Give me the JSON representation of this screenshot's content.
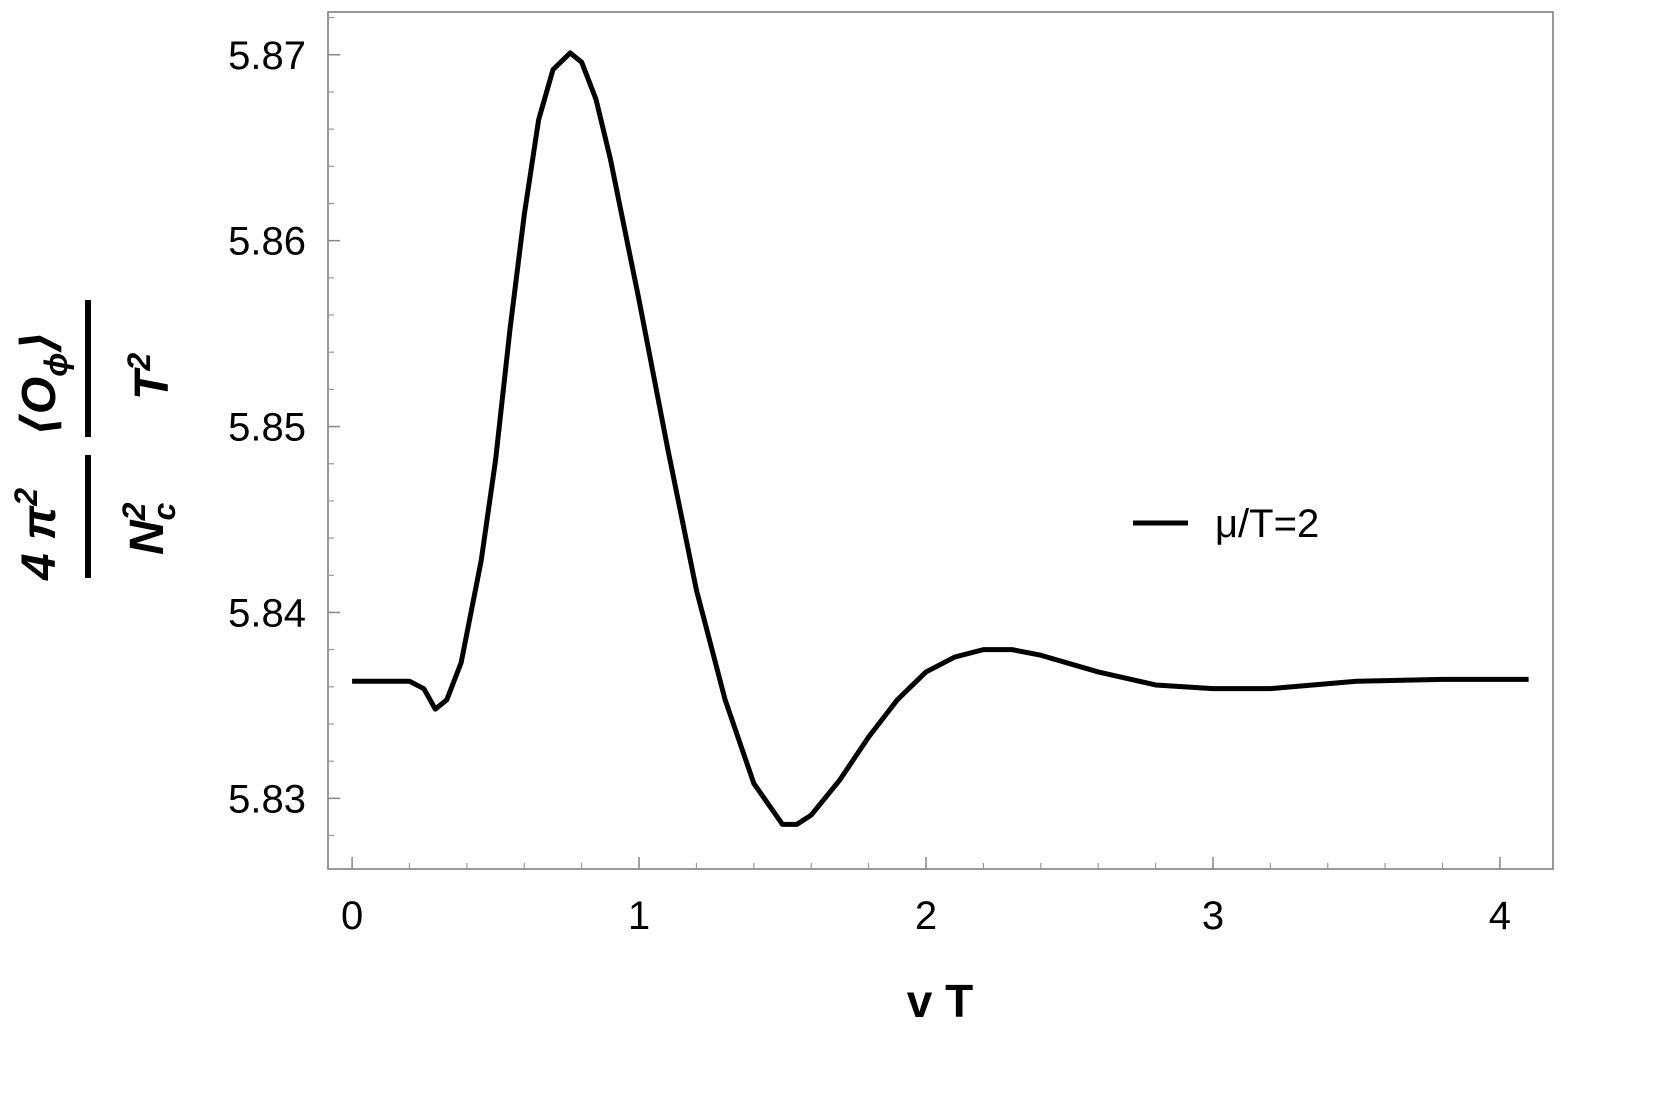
{
  "chart_data": {
    "type": "line",
    "xlabel": "v T",
    "ylabel": {
      "numerator_1": "4 π",
      "numerator_1_sup": "2",
      "denominator_1": "N",
      "denominator_1_sup": "2",
      "denominator_1_sub": "c",
      "numerator_2": "⟨O",
      "numerator_2_sub": "ϕ",
      "numerator_2_close": "⟩",
      "denominator_2": "T",
      "denominator_2_sup": "2"
    },
    "x": [
      0,
      0.2,
      0.25,
      0.29,
      0.33,
      0.38,
      0.45,
      0.5,
      0.55,
      0.6,
      0.65,
      0.7,
      0.76,
      0.8,
      0.85,
      0.9,
      1.0,
      1.1,
      1.2,
      1.3,
      1.4,
      1.5,
      1.55,
      1.6,
      1.7,
      1.8,
      1.9,
      2.0,
      2.1,
      2.2,
      2.3,
      2.4,
      2.6,
      2.8,
      3.0,
      3.2,
      3.5,
      3.8,
      4.1
    ],
    "series": [
      {
        "name": "μ/T=2",
        "color": "#000000",
        "values": [
          5.8363,
          5.8363,
          5.8359,
          5.8348,
          5.8353,
          5.8373,
          5.8428,
          5.8482,
          5.8552,
          5.8614,
          5.8665,
          5.8692,
          5.8701,
          5.8696,
          5.8676,
          5.8644,
          5.8568,
          5.8488,
          5.8412,
          5.8353,
          5.8308,
          5.8286,
          5.8286,
          5.8291,
          5.831,
          5.8333,
          5.8353,
          5.8368,
          5.8376,
          5.838,
          5.838,
          5.8377,
          5.8368,
          5.8361,
          5.8359,
          5.8359,
          5.8363,
          5.8364,
          5.8364
        ]
      }
    ],
    "xlim": [
      -0.084,
      4.185
    ],
    "ylim": [
      5.8262,
      5.8723
    ],
    "xticks": [
      0,
      1,
      2,
      3,
      4
    ],
    "yticks": [
      5.83,
      5.84,
      5.85,
      5.86,
      5.87
    ],
    "grid": false,
    "legend": "right"
  }
}
